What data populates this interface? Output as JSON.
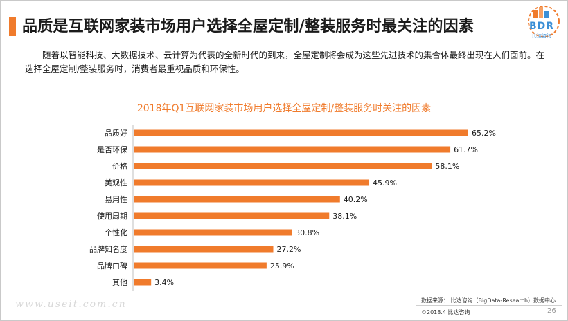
{
  "header": {
    "title": "品质是互联网家装市场用户选择全屋定制/整装服务时最关注的因素"
  },
  "logo": {
    "text": "BDR",
    "subtitle": "比达咨询"
  },
  "intro_text": "随着以智能科技、大数据技术、云计算为代表的全新时代的到来，全屋定制将会成为这些先进技术的集合体最终出现在人们面前。在选择全屋定制/整装服务时，消费者最重视品质和环保性。",
  "colors": {
    "accent": "#f07b2c",
    "bar": "#f07b2c",
    "logo": "#3b8fd6"
  },
  "chart_data": {
    "type": "bar",
    "orientation": "horizontal",
    "title": "2018年Q1互联网家装市场用户选择全屋定制/整装服务时关注的因素",
    "categories": [
      "品质好",
      "是否环保",
      "价格",
      "美观性",
      "易用性",
      "使用周期",
      "个性化",
      "品牌知名度",
      "品牌口碑",
      "其他"
    ],
    "values": [
      65.2,
      61.7,
      58.1,
      45.9,
      40.2,
      38.1,
      30.8,
      27.2,
      25.9,
      3.4
    ],
    "data_labels": [
      "65.2%",
      "61.7%",
      "58.1%",
      "45.9%",
      "40.2%",
      "38.1%",
      "30.8%",
      "27.2%",
      "25.9%",
      "3.4%"
    ],
    "unit": "%",
    "xlim": [
      0,
      65.2
    ],
    "grid": false,
    "legend": "none"
  },
  "footer": {
    "source": "数据来源： 比达咨询（BigData-Research）数据中心",
    "copyright": "©2018.4   比达咨询",
    "page_number": "26",
    "watermark": "www.useit.com.cn"
  }
}
